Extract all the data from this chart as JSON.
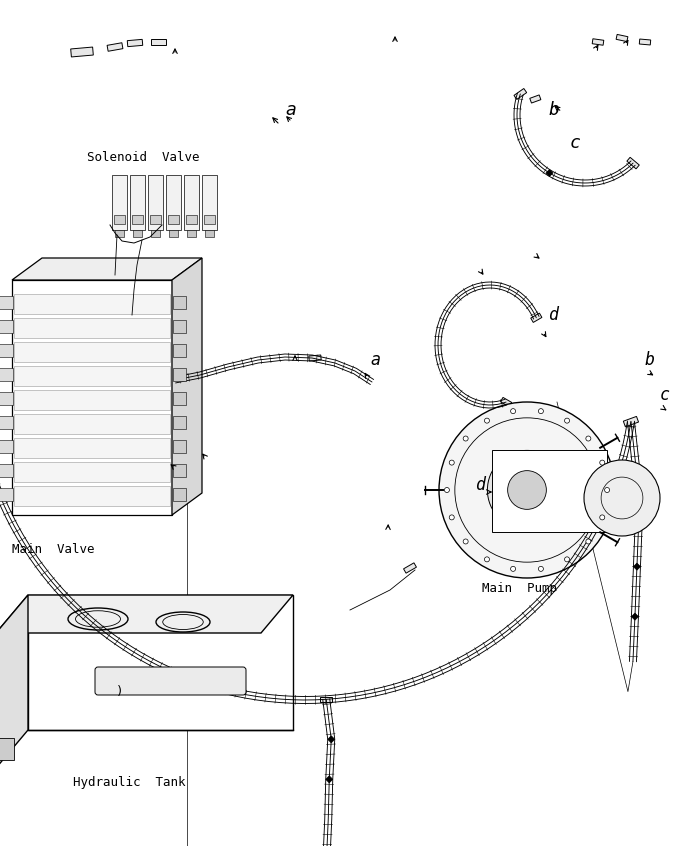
{
  "bg": "#ffffff",
  "lc": "#000000",
  "labels": {
    "solenoid_valve": "Solenoid  Valve",
    "main_valve": "Main  Valve",
    "main_pump": "Main  Pump",
    "hydraulic_tank": "Hydraulic  Tank"
  },
  "font": "monospace",
  "fs": 9,
  "fs_letter": 11
}
